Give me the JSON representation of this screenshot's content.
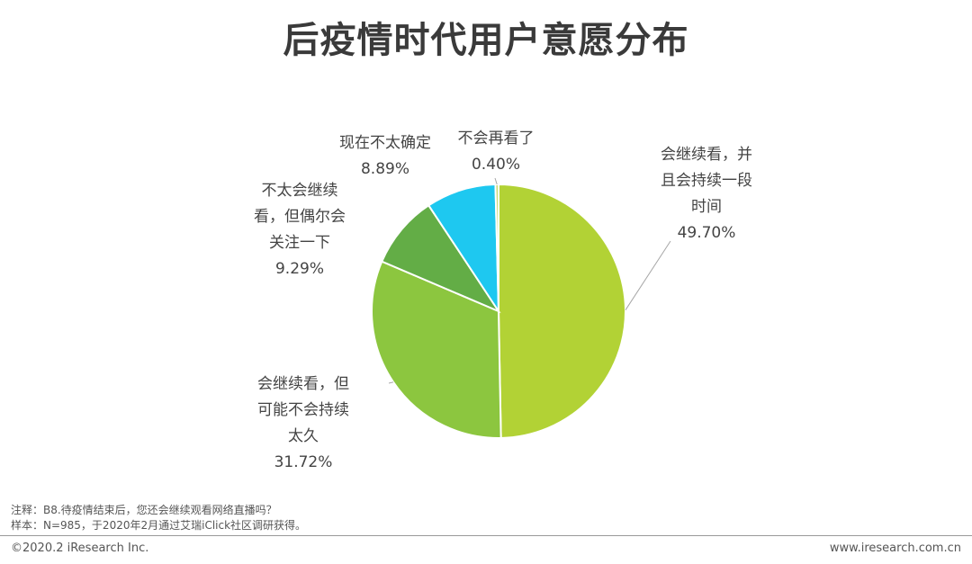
{
  "chart_data": {
    "type": "pie",
    "title": "后疫情时代用户意愿分布",
    "slices": [
      {
        "label": [
          "会继续看，并",
          "且会持续一段",
          "时间"
        ],
        "value_label": "49.70%",
        "value": 49.7,
        "color": "#b2d235"
      },
      {
        "label": [
          "会继续看，但",
          "可能不会持续",
          "太久"
        ],
        "value_label": "31.72%",
        "value": 31.72,
        "color": "#8cc63f"
      },
      {
        "label": [
          "不太会继续",
          "看，但偶尔会",
          "关注一下"
        ],
        "value_label": "9.29%",
        "value": 9.29,
        "color": "#63ad46"
      },
      {
        "label": [
          "现在不太确定"
        ],
        "value_label": "8.89%",
        "value": 8.89,
        "color": "#1ec8f0"
      },
      {
        "label": [
          "不会再看了"
        ],
        "value_label": "0.40%",
        "value": 0.4,
        "color": "#c8d870"
      }
    ]
  },
  "notes": {
    "note": "注释：B8.待疫情结束后，您还会继续观看网络直播吗？",
    "sample": "样本：N=985，于2020年2月通过艾瑞iClick社区调研获得。"
  },
  "footer": {
    "copyright": "©2020.2 iResearch Inc.",
    "website": "www.iresearch.com.cn"
  }
}
